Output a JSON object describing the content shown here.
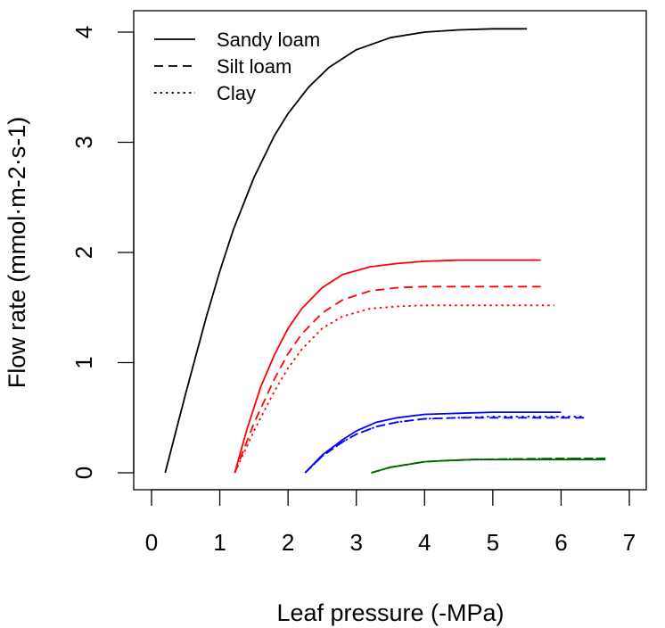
{
  "chart_data": {
    "type": "line",
    "title": "",
    "xlabel": "Leaf pressure (-MPa)",
    "ylabel": "Flow rate  (mmol·m-2·s-1)",
    "xlim": [
      0,
      7
    ],
    "ylim": [
      0,
      4.16
    ],
    "xticks": [
      0,
      1,
      2,
      3,
      4,
      5,
      6,
      7
    ],
    "yticks": [
      0,
      1,
      2,
      3,
      4
    ],
    "grid": false,
    "legend_position": "top-left",
    "legend": [
      {
        "label": "Sandy loam",
        "linestyle": "solid"
      },
      {
        "label": "Silt loam",
        "linestyle": "dashed"
      },
      {
        "label": "Clay",
        "linestyle": "dotted"
      }
    ],
    "series": [
      {
        "color": "#000000",
        "linestyle": "solid",
        "x": [
          0.2,
          0.5,
          0.8,
          1.0,
          1.2,
          1.5,
          1.8,
          2.0,
          2.3,
          2.6,
          3.0,
          3.5,
          4.0,
          4.5,
          5.0,
          5.5
        ],
        "y": [
          0.0,
          0.72,
          1.41,
          1.83,
          2.21,
          2.68,
          3.06,
          3.26,
          3.5,
          3.68,
          3.84,
          3.95,
          4.0,
          4.02,
          4.03,
          4.03
        ]
      },
      {
        "color": "#ff0000",
        "linestyle": "solid",
        "x": [
          1.22,
          1.4,
          1.6,
          1.8,
          2.0,
          2.2,
          2.5,
          2.8,
          3.2,
          3.6,
          4.0,
          4.5,
          5.0,
          5.7
        ],
        "y": [
          0.0,
          0.4,
          0.78,
          1.07,
          1.31,
          1.49,
          1.68,
          1.8,
          1.87,
          1.9,
          1.92,
          1.93,
          1.93,
          1.93
        ]
      },
      {
        "color": "#ff0000",
        "linestyle": "dashed",
        "x": [
          1.22,
          1.5,
          1.8,
          2.0,
          2.2,
          2.5,
          2.8,
          3.2,
          3.6,
          4.0,
          4.5,
          5.0,
          5.7
        ],
        "y": [
          0.0,
          0.45,
          0.85,
          1.08,
          1.26,
          1.45,
          1.57,
          1.65,
          1.68,
          1.69,
          1.69,
          1.69,
          1.69
        ]
      },
      {
        "color": "#ff0000",
        "linestyle": "dotted",
        "x": [
          1.22,
          1.5,
          1.8,
          2.0,
          2.2,
          2.5,
          2.8,
          3.2,
          3.6,
          4.0,
          4.5,
          5.0,
          5.9
        ],
        "y": [
          0.0,
          0.38,
          0.74,
          0.95,
          1.12,
          1.31,
          1.42,
          1.49,
          1.51,
          1.52,
          1.52,
          1.52,
          1.52
        ]
      },
      {
        "color": "#0000ff",
        "linestyle": "solid",
        "x": [
          2.25,
          2.5,
          2.8,
          3.0,
          3.3,
          3.6,
          4.0,
          4.5,
          5.0,
          6.0
        ],
        "y": [
          0.0,
          0.16,
          0.3,
          0.38,
          0.46,
          0.5,
          0.53,
          0.54,
          0.55,
          0.55
        ]
      },
      {
        "color": "#0000ff",
        "linestyle": "dashed",
        "x": [
          2.25,
          2.5,
          2.8,
          3.0,
          3.3,
          3.6,
          4.0,
          4.5,
          5.0,
          6.35
        ],
        "y": [
          0.0,
          0.15,
          0.28,
          0.35,
          0.42,
          0.46,
          0.49,
          0.5,
          0.5,
          0.5
        ]
      },
      {
        "color": "#0000ff",
        "linestyle": "dotted",
        "x": [
          2.25,
          2.5,
          2.8,
          3.0,
          3.3,
          3.6,
          4.0,
          4.5,
          5.0,
          6.35
        ],
        "y": [
          0.0,
          0.15,
          0.28,
          0.35,
          0.42,
          0.46,
          0.49,
          0.5,
          0.51,
          0.51
        ]
      },
      {
        "color": "#006400",
        "linestyle": "solid",
        "x": [
          3.22,
          3.5,
          3.8,
          4.0,
          4.3,
          4.7,
          5.2,
          6.0,
          6.65
        ],
        "y": [
          0.0,
          0.05,
          0.08,
          0.1,
          0.11,
          0.12,
          0.12,
          0.12,
          0.12
        ]
      },
      {
        "color": "#006400",
        "linestyle": "dashed",
        "x": [
          3.22,
          3.5,
          3.8,
          4.0,
          4.3,
          4.7,
          5.2,
          6.0,
          6.65
        ],
        "y": [
          0.0,
          0.05,
          0.08,
          0.1,
          0.11,
          0.12,
          0.125,
          0.13,
          0.13
        ]
      },
      {
        "color": "#006400",
        "linestyle": "dotted",
        "x": [
          3.22,
          3.5,
          3.8,
          4.0,
          4.3,
          4.7,
          5.2,
          6.0,
          6.65
        ],
        "y": [
          0.0,
          0.05,
          0.08,
          0.1,
          0.11,
          0.12,
          0.125,
          0.13,
          0.13
        ]
      }
    ]
  }
}
